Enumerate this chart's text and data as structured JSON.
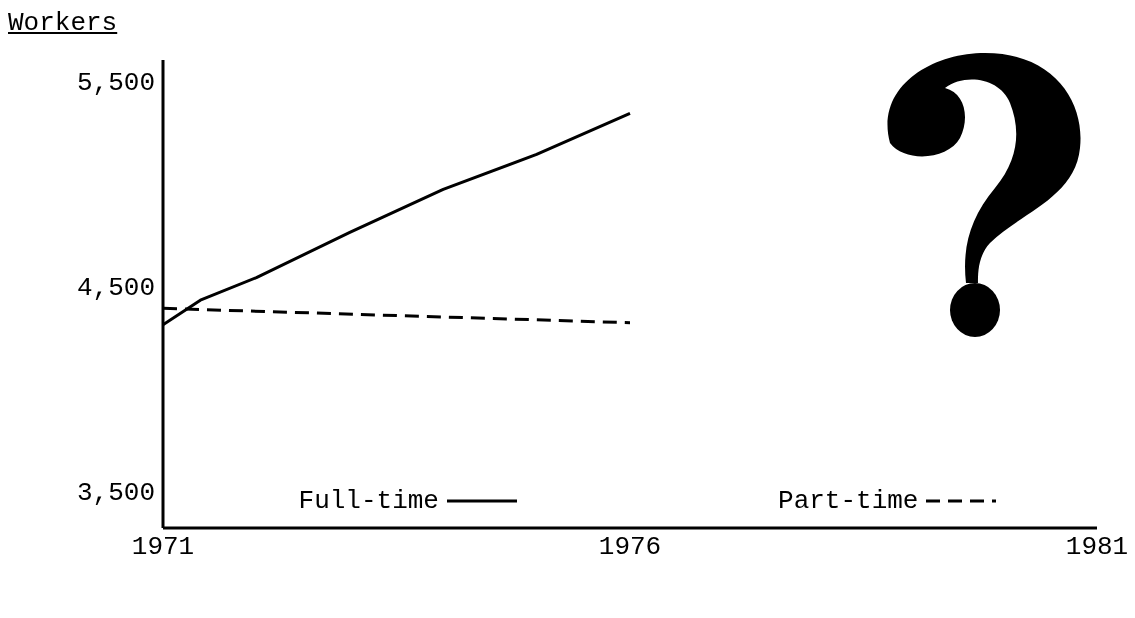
{
  "chart_data": {
    "type": "line",
    "ylabel": "Workers",
    "series": [
      {
        "name": "Full-time",
        "color": "#000000",
        "line_style": "solid",
        "x": [
          1971,
          1971.4,
          1972,
          1973,
          1974,
          1975,
          1976
        ],
        "values": [
          4310,
          4430,
          4540,
          4760,
          4970,
          5140,
          5340
        ]
      },
      {
        "name": "Part-time",
        "color": "#000000",
        "line_style": "dashed",
        "x": [
          1971,
          1976
        ],
        "values": [
          4390,
          4320
        ]
      }
    ],
    "xlim": [
      1971,
      1981
    ],
    "xticks": [
      1971,
      1976,
      1981
    ],
    "ylim": [
      3320,
      5600
    ],
    "yticks": [
      {
        "value": 3500,
        "label": "3,500"
      },
      {
        "value": 4500,
        "label": "4,500"
      },
      {
        "value": 5500,
        "label": "5,500"
      }
    ],
    "grid": false,
    "legend": "bottom",
    "marker": "none"
  }
}
